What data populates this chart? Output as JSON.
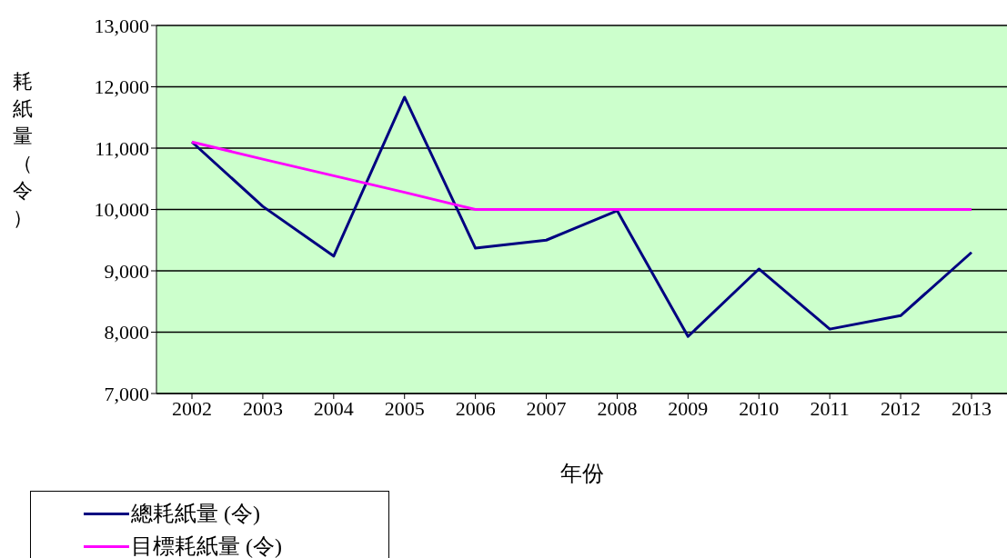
{
  "chart_data": {
    "type": "line",
    "xlabel": "年份",
    "ylabel": "耗紙量（令）",
    "categories": [
      "2002",
      "2003",
      "2004",
      "2005",
      "2006",
      "2007",
      "2008",
      "2009",
      "2010",
      "2011",
      "2012",
      "2013"
    ],
    "series": [
      {
        "name": "總耗紙量 (令)",
        "color": "#000080",
        "values": [
          11100,
          10050,
          9240,
          11830,
          9370,
          9500,
          9980,
          7930,
          9030,
          8050,
          8270,
          9300
        ]
      },
      {
        "name": "目標耗紙量 (令)",
        "color": "#ff00ff",
        "values": [
          11100,
          10820,
          10550,
          10280,
          10000,
          10000,
          10000,
          10000,
          10000,
          10000,
          10000,
          10000
        ]
      }
    ],
    "ylim": [
      7000,
      13000
    ],
    "yticks": [
      {
        "value": 7000,
        "label": "7,000"
      },
      {
        "value": 8000,
        "label": "8,000"
      },
      {
        "value": 9000,
        "label": "9,000"
      },
      {
        "value": 10000,
        "label": "10,000"
      },
      {
        "value": 11000,
        "label": "11,000"
      },
      {
        "value": 12000,
        "label": "12,000"
      },
      {
        "value": 13000,
        "label": "13,000"
      }
    ],
    "grid": "y",
    "legend": "bottom left",
    "marker": "none",
    "line_style": "solid"
  }
}
